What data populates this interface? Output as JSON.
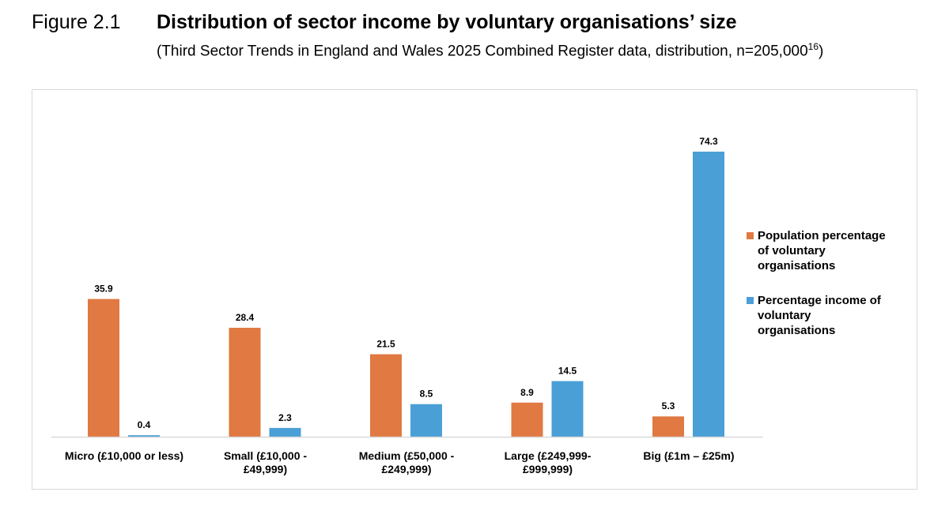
{
  "header": {
    "figure_label": "Figure 2.1",
    "title": "Distribution of sector income by voluntary organisations’ size",
    "subtitle": "(Third Sector Trends in England and Wales 2025 Combined Register data, distribution, n=205,000",
    "footnote_ref": "16",
    "subtitle_end": ")"
  },
  "chart_data": {
    "type": "bar",
    "title": "Distribution of sector income by voluntary organisations’ size",
    "categories": [
      [
        "Micro (£10,000 or less)"
      ],
      [
        "Small (£10,000 -",
        "£49,999)"
      ],
      [
        "Medium (£50,000 -",
        "£249,999)"
      ],
      [
        "Large (£249,999-",
        "£999,999)"
      ],
      [
        "Big (£1m – £25m)"
      ]
    ],
    "series": [
      {
        "name": "Population percentage of voluntary organisations",
        "legend_lines": [
          "Population percentage",
          "of voluntary",
          "organisations"
        ],
        "color": "#E07942",
        "values": [
          35.9,
          28.4,
          21.5,
          8.9,
          5.3
        ]
      },
      {
        "name": "Percentage income of voluntary organisations",
        "legend_lines": [
          "Percentage income of",
          "voluntary",
          "organisations"
        ],
        "color": "#4A9FD6",
        "values": [
          0.4,
          2.3,
          8.5,
          14.5,
          74.3
        ]
      }
    ],
    "ylim": [
      0,
      74.3
    ],
    "y_axis_shown": false,
    "grid": false,
    "data_labels": true,
    "legend_placement": "right"
  }
}
